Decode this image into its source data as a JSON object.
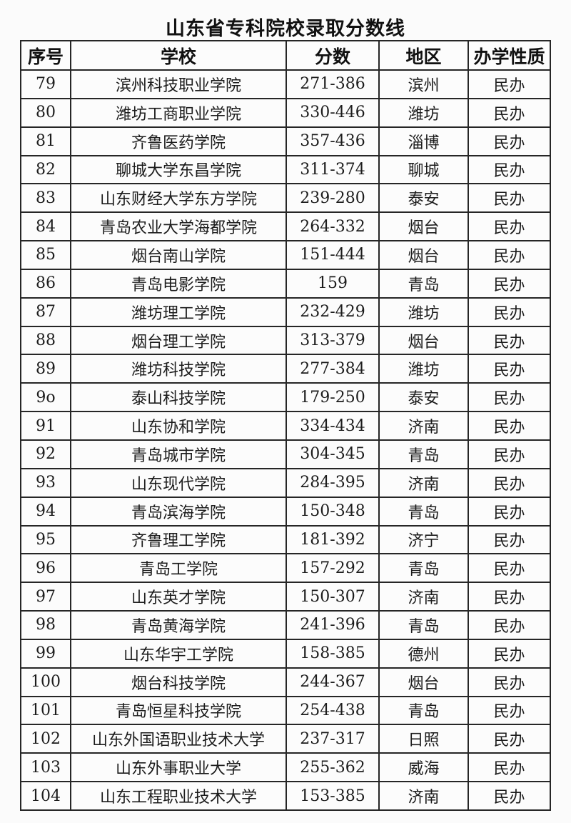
{
  "page": {
    "title": "山东省专科院校录取分数线"
  },
  "colors": {
    "background": "#fbfbfb",
    "border": "#262626",
    "text": "#1a1a1a"
  },
  "table": {
    "headers": [
      "序号",
      "学校",
      "分数",
      "地区",
      "办学性质"
    ],
    "rows": [
      [
        "79",
        "滨州科技职业学院",
        "271-386",
        "滨州",
        "民办"
      ],
      [
        "80",
        "潍坊工商职业学院",
        "330-446",
        "潍坊",
        "民办"
      ],
      [
        "81",
        "齐鲁医药学院",
        "357-436",
        "淄博",
        "民办"
      ],
      [
        "82",
        "聊城大学东昌学院",
        "311-374",
        "聊城",
        "民办"
      ],
      [
        "83",
        "山东财经大学东方学院",
        "239-280",
        "泰安",
        "民办"
      ],
      [
        "84",
        "青岛农业大学海都学院",
        "264-332",
        "烟台",
        "民办"
      ],
      [
        "85",
        "烟台南山学院",
        "151-444",
        "烟台",
        "民办"
      ],
      [
        "86",
        "青岛电影学院",
        "159",
        "青岛",
        "民办"
      ],
      [
        "87",
        "潍坊理工学院",
        "232-429",
        "潍坊",
        "民办"
      ],
      [
        "88",
        "烟台理工学院",
        "313-379",
        "烟台",
        "民办"
      ],
      [
        "89",
        "潍坊科技学院",
        "277-384",
        "潍坊",
        "民办"
      ],
      [
        "9o",
        "泰山科技学院",
        "179-250",
        "泰安",
        "民办"
      ],
      [
        "91",
        "山东协和学院",
        "334-434",
        "济南",
        "民办"
      ],
      [
        "92",
        "青岛城市学院",
        "304-345",
        "青岛",
        "民办"
      ],
      [
        "93",
        "山东现代学院",
        "284-395",
        "济南",
        "民办"
      ],
      [
        "94",
        "青岛滨海学院",
        "150-348",
        "青岛",
        "民办"
      ],
      [
        "95",
        "齐鲁理工学院",
        "181-392",
        "济宁",
        "民办"
      ],
      [
        "96",
        "青岛工学院",
        "157-292",
        "青岛",
        "民办"
      ],
      [
        "97",
        "山东英才学院",
        "150-307",
        "济南",
        "民办"
      ],
      [
        "98",
        "青岛黄海学院",
        "241-396",
        "青岛",
        "民办"
      ],
      [
        "99",
        "山东华宇工学院",
        "158-385",
        "德州",
        "民办"
      ],
      [
        "100",
        "烟台科技学院",
        "244-367",
        "烟台",
        "民办"
      ],
      [
        "101",
        "青岛恒星科技学院",
        "254-438",
        "青岛",
        "民办"
      ],
      [
        "102",
        "山东外国语职业技术大学",
        "237-317",
        "日照",
        "民办"
      ],
      [
        "103",
        "山东外事职业大学",
        "255-362",
        "威海",
        "民办"
      ],
      [
        "104",
        "山东工程职业技术大学",
        "153-385",
        "济南",
        "民办"
      ]
    ]
  }
}
